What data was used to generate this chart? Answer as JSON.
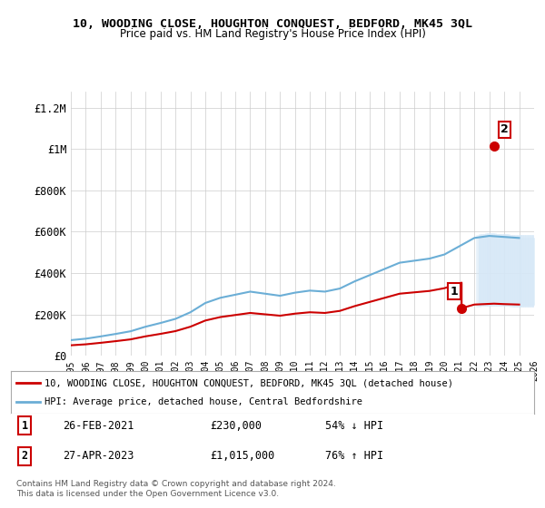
{
  "title": "10, WOODING CLOSE, HOUGHTON CONQUEST, BEDFORD, MK45 3QL",
  "subtitle": "Price paid vs. HM Land Registry's House Price Index (HPI)",
  "ylabel_ticks": [
    "£0",
    "£200K",
    "£400K",
    "£600K",
    "£800K",
    "£1M",
    "£1.2M"
  ],
  "ytick_values": [
    0,
    200000,
    400000,
    600000,
    800000,
    1000000,
    1200000
  ],
  "ylim": [
    0,
    1280000
  ],
  "xlim_start": 1995,
  "xlim_end": 2026,
  "hpi_color": "#6baed6",
  "price_color": "#cc0000",
  "marker_color_1": "#cc0000",
  "marker_color_2": "#cc0000",
  "shaded_color": "#d6e8f7",
  "legend_label_1": "10, WOODING CLOSE, HOUGHTON CONQUEST, BEDFORD, MK45 3QL (detached house)",
  "legend_label_2": "HPI: Average price, detached house, Central Bedfordshire",
  "transaction_1_label": "1",
  "transaction_1_date": "26-FEB-2021",
  "transaction_1_price": "£230,000",
  "transaction_1_hpi": "54% ↓ HPI",
  "transaction_2_label": "2",
  "transaction_2_date": "27-APR-2023",
  "transaction_2_price": "£1,015,000",
  "transaction_2_hpi": "76% ↑ HPI",
  "footnote": "Contains HM Land Registry data © Crown copyright and database right 2024.\nThis data is licensed under the Open Government Licence v3.0.",
  "hpi_years": [
    1995,
    1996,
    1997,
    1998,
    1999,
    2000,
    2001,
    2002,
    2003,
    2004,
    2005,
    2006,
    2007,
    2008,
    2009,
    2010,
    2011,
    2012,
    2013,
    2014,
    2015,
    2016,
    2017,
    2018,
    2019,
    2020,
    2021,
    2022,
    2023,
    2024,
    2025
  ],
  "hpi_values": [
    75000,
    82000,
    93000,
    105000,
    118000,
    140000,
    158000,
    178000,
    210000,
    255000,
    280000,
    295000,
    310000,
    300000,
    290000,
    305000,
    315000,
    310000,
    325000,
    360000,
    390000,
    420000,
    450000,
    460000,
    470000,
    490000,
    530000,
    570000,
    580000,
    575000,
    570000
  ],
  "price_years": [
    1995,
    2021,
    2023
  ],
  "price_values": [
    50000,
    230000,
    1015000
  ],
  "sale_1_x": 2021.15,
  "sale_1_y": 230000,
  "sale_2_x": 2023.32,
  "sale_2_y": 1015000
}
